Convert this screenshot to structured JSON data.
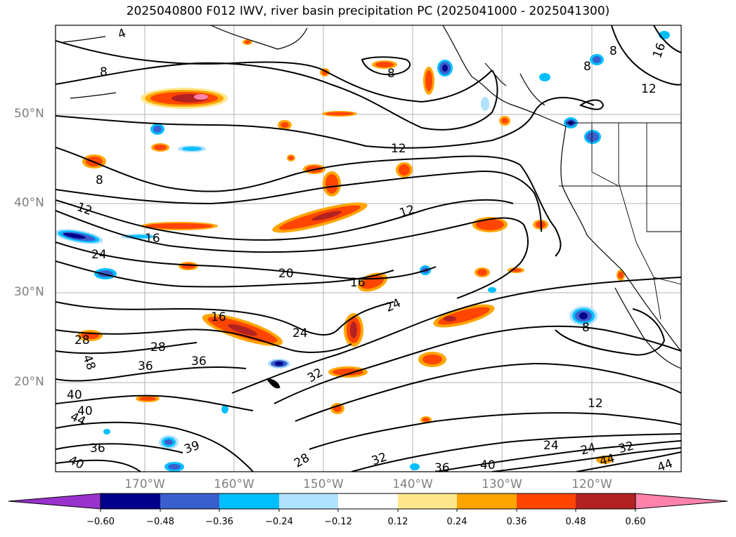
{
  "title": "2025040800 F012 IWV, river basin precipitation PC (2025041000 - 2025041300)",
  "map": {
    "projection": "PlateCarree",
    "lon_range": [
      -180,
      -110
    ],
    "lat_range": [
      10,
      60
    ],
    "lat_labels": [
      "50°N",
      "40°N",
      "30°N",
      "20°N"
    ],
    "lon_labels": [
      "170°W",
      "160°W",
      "150°W",
      "140°W",
      "130°W",
      "120°W"
    ],
    "gridlines": true,
    "filled_field": "river basin precipitation PC",
    "contour_field": "IWV",
    "contour_labels": [
      "4",
      "8",
      "8",
      "8",
      "8",
      "8",
      "8",
      "12",
      "12",
      "12",
      "12",
      "12",
      "16",
      "16",
      "16",
      "16",
      "20",
      "24",
      "24",
      "24",
      "24",
      "24",
      "28",
      "28",
      "28",
      "32",
      "32",
      "32",
      "36",
      "36",
      "36",
      "36",
      "39",
      "40",
      "40",
      "40",
      "40",
      "44",
      "44",
      "44",
      "48"
    ]
  },
  "colorbar": {
    "ticks": [
      "−0.60",
      "−0.48",
      "−0.36",
      "−0.24",
      "−0.12",
      "0.12",
      "0.24",
      "0.36",
      "0.48",
      "0.60"
    ],
    "colors": [
      "#9932cc",
      "#00008b",
      "#3a5fcd",
      "#00bfff",
      "#b0e2ff",
      "#ffffff",
      "#ffe88c",
      "#ffa500",
      "#ff4500",
      "#b22222",
      "#ff82ab"
    ],
    "extend": "both"
  },
  "colors": {
    "coast": "#000000",
    "grid": "#a0a0a0",
    "label_gray": "#808080"
  }
}
